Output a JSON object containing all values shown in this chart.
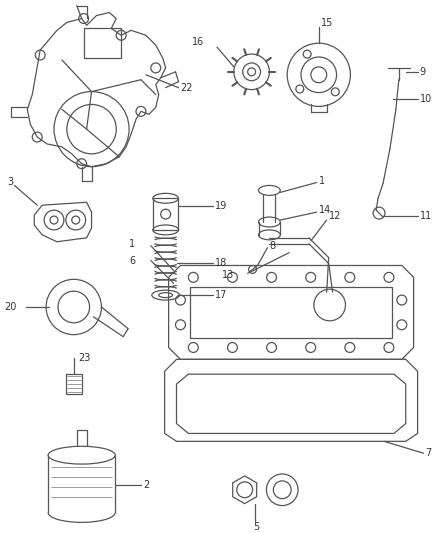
{
  "bg_color": "#ffffff",
  "line_color": "#555555",
  "label_color": "#333333",
  "figsize": [
    4.39,
    5.33
  ],
  "dpi": 100
}
